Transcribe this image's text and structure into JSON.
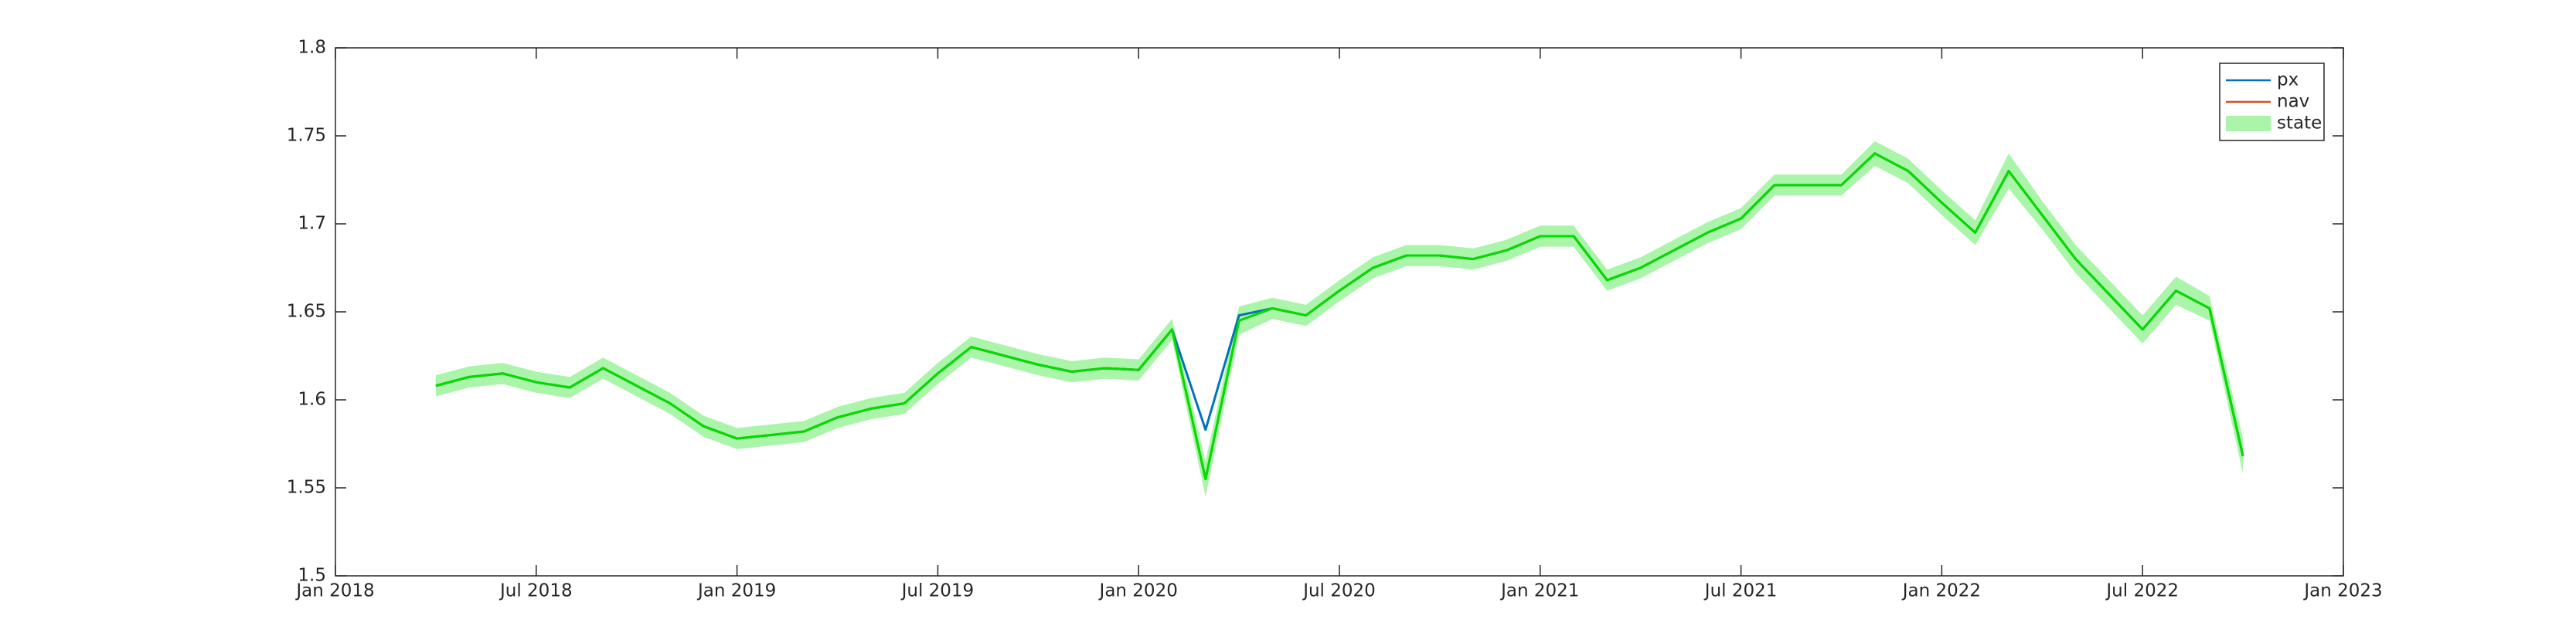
{
  "chart_data": {
    "type": "line",
    "x": [
      "2018-04",
      "2018-05",
      "2018-06",
      "2018-07",
      "2018-08",
      "2018-09",
      "2018-10",
      "2018-11",
      "2018-12",
      "2019-01",
      "2019-02",
      "2019-03",
      "2019-04",
      "2019-05",
      "2019-06",
      "2019-07",
      "2019-08",
      "2019-09",
      "2019-10",
      "2019-11",
      "2019-12",
      "2020-01",
      "2020-02",
      "2020-03",
      "2020-04",
      "2020-05",
      "2020-06",
      "2020-07",
      "2020-08",
      "2020-09",
      "2020-10",
      "2020-11",
      "2020-12",
      "2021-01",
      "2021-02",
      "2021-03",
      "2021-04",
      "2021-05",
      "2021-06",
      "2021-07",
      "2021-08",
      "2021-09",
      "2021-10",
      "2021-11",
      "2021-12",
      "2022-01",
      "2022-02",
      "2022-03",
      "2022-04",
      "2022-05",
      "2022-06",
      "2022-07",
      "2022-08",
      "2022-09",
      "2022-10"
    ],
    "series": [
      {
        "name": "px",
        "color": "#0072bd",
        "values": [
          1.608,
          1.613,
          1.615,
          1.61,
          1.607,
          1.618,
          1.608,
          1.598,
          1.585,
          1.578,
          1.58,
          1.582,
          1.59,
          1.595,
          1.598,
          1.615,
          1.63,
          1.625,
          1.62,
          1.616,
          1.618,
          1.617,
          1.64,
          1.583,
          1.648,
          1.652,
          1.648,
          1.662,
          1.675,
          1.682,
          1.682,
          1.68,
          1.685,
          1.693,
          1.693,
          1.668,
          1.675,
          1.685,
          1.695,
          1.703,
          1.722,
          1.722,
          1.722,
          1.74,
          1.73,
          1.712,
          1.695,
          1.73,
          1.705,
          1.68,
          1.66,
          1.64,
          1.662,
          1.652,
          1.568
        ]
      },
      {
        "name": "nav",
        "color": "#d95319",
        "values": [
          1.608,
          1.613,
          1.615,
          1.61,
          1.607,
          1.618,
          1.608,
          1.598,
          1.585,
          1.578,
          1.58,
          1.582,
          1.59,
          1.595,
          1.598,
          1.615,
          1.63,
          1.625,
          1.62,
          1.616,
          1.618,
          1.617,
          1.64,
          1.555,
          1.645,
          1.652,
          1.648,
          1.662,
          1.675,
          1.682,
          1.682,
          1.68,
          1.685,
          1.693,
          1.693,
          1.668,
          1.675,
          1.685,
          1.695,
          1.703,
          1.722,
          1.722,
          1.722,
          1.74,
          1.73,
          1.712,
          1.695,
          1.73,
          1.705,
          1.68,
          1.66,
          1.64,
          1.662,
          1.652,
          1.568
        ]
      },
      {
        "name": "state",
        "color": "#00dd00",
        "band_color": "#aaf5aa",
        "values": [
          1.608,
          1.613,
          1.615,
          1.61,
          1.607,
          1.618,
          1.608,
          1.598,
          1.585,
          1.578,
          1.58,
          1.582,
          1.59,
          1.595,
          1.598,
          1.615,
          1.63,
          1.625,
          1.62,
          1.616,
          1.618,
          1.617,
          1.64,
          1.555,
          1.645,
          1.652,
          1.648,
          1.662,
          1.675,
          1.682,
          1.682,
          1.68,
          1.685,
          1.693,
          1.693,
          1.668,
          1.675,
          1.685,
          1.695,
          1.703,
          1.722,
          1.722,
          1.722,
          1.74,
          1.73,
          1.712,
          1.695,
          1.73,
          1.705,
          1.68,
          1.66,
          1.64,
          1.662,
          1.652,
          1.568
        ],
        "lower": [
          1.602,
          1.607,
          1.609,
          1.604,
          1.601,
          1.612,
          1.602,
          1.592,
          1.579,
          1.572,
          1.574,
          1.576,
          1.584,
          1.589,
          1.592,
          1.609,
          1.624,
          1.619,
          1.614,
          1.61,
          1.612,
          1.611,
          1.634,
          1.545,
          1.637,
          1.646,
          1.642,
          1.656,
          1.669,
          1.676,
          1.676,
          1.674,
          1.679,
          1.687,
          1.687,
          1.662,
          1.669,
          1.679,
          1.689,
          1.697,
          1.716,
          1.716,
          1.716,
          1.733,
          1.723,
          1.705,
          1.688,
          1.72,
          1.697,
          1.672,
          1.652,
          1.632,
          1.654,
          1.645,
          1.558
        ],
        "upper": [
          1.614,
          1.619,
          1.621,
          1.616,
          1.613,
          1.624,
          1.614,
          1.604,
          1.591,
          1.584,
          1.586,
          1.588,
          1.596,
          1.601,
          1.604,
          1.621,
          1.636,
          1.631,
          1.626,
          1.622,
          1.624,
          1.623,
          1.646,
          1.565,
          1.653,
          1.658,
          1.654,
          1.668,
          1.681,
          1.688,
          1.688,
          1.686,
          1.691,
          1.699,
          1.699,
          1.674,
          1.681,
          1.691,
          1.701,
          1.709,
          1.728,
          1.728,
          1.728,
          1.747,
          1.737,
          1.719,
          1.702,
          1.74,
          1.713,
          1.688,
          1.668,
          1.648,
          1.67,
          1.659,
          1.578
        ]
      }
    ],
    "xlim": [
      "2018-01",
      "2023-01"
    ],
    "xticks": [
      {
        "value": "2018-01",
        "label": "Jan 2018"
      },
      {
        "value": "2018-07",
        "label": "Jul 2018"
      },
      {
        "value": "2019-01",
        "label": "Jan 2019"
      },
      {
        "value": "2019-07",
        "label": "Jul 2019"
      },
      {
        "value": "2020-01",
        "label": "Jan 2020"
      },
      {
        "value": "2020-07",
        "label": "Jul 2020"
      },
      {
        "value": "2021-01",
        "label": "Jan 2021"
      },
      {
        "value": "2021-07",
        "label": "Jul 2021"
      },
      {
        "value": "2022-01",
        "label": "Jan 2022"
      },
      {
        "value": "2022-07",
        "label": "Jul 2022"
      },
      {
        "value": "2023-01",
        "label": "Jan 2023"
      }
    ],
    "ylim": [
      1.5,
      1.8
    ],
    "yticks": [
      1.5,
      1.55,
      1.6,
      1.65,
      1.7,
      1.75,
      1.8
    ],
    "grid": false,
    "legend": "northeast"
  }
}
